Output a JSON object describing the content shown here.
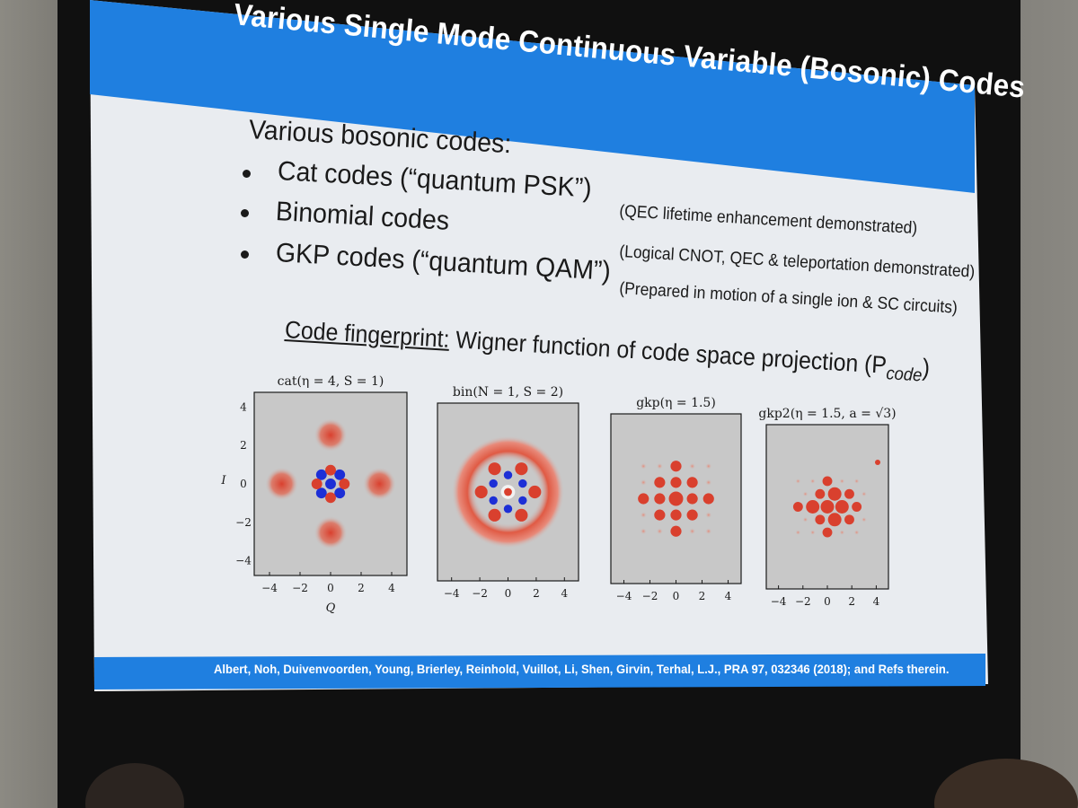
{
  "slide": {
    "title": "Various Single Mode Continuous Variable (Bosonic) Codes",
    "intro": "Various bosonic codes:",
    "bullets": [
      {
        "label": "Cat codes (“quantum PSK”)",
        "note": "(QEC lifetime enhancement demonstrated)"
      },
      {
        "label": "Binomial codes",
        "note": "(Logical CNOT, QEC & teleportation demonstrated)"
      },
      {
        "label": "GKP codes (“quantum QAM”)",
        "note": "(Prepared in motion of a single ion & SC circuits)"
      }
    ],
    "fingerprint_label": "Code fingerprint:",
    "fingerprint_text": "Wigner function of code space projection (P",
    "fingerprint_sub": "code",
    "fingerprint_close": ")",
    "footer": "Albert, Noh, Duivenvoorden, Young, Brierley, Reinhold, Vuillot, Li, Shen, Girvin, Terhal, L.J., PRA 97, 032346 (2018); and Refs therein."
  },
  "plots": [
    {
      "title": "cat(η = 4, S = 1)",
      "ylabel": "I",
      "xlabel": "Q",
      "xticks": [
        "−4",
        "−2",
        "0",
        "2",
        "4"
      ],
      "yticks": [
        "4",
        "2",
        "0",
        "−2",
        "−4"
      ],
      "kind": "cat"
    },
    {
      "title": "bin(N = 1, S = 2)",
      "xticks": [
        "−4",
        "−2",
        "0",
        "2",
        "4"
      ],
      "kind": "bin"
    },
    {
      "title": "gkp(η = 1.5)",
      "xticks": [
        "−4",
        "−2",
        "0",
        "2",
        "4"
      ],
      "kind": "gkp"
    },
    {
      "title": "gkp2(η = 1.5, a = √3)",
      "xticks": [
        "−4",
        "−2",
        "0",
        "2",
        "4"
      ],
      "kind": "gkp2"
    }
  ],
  "colors": {
    "accent": "#1f7fe0",
    "positive": "#d9402e",
    "negative": "#1d2fd6",
    "plot_bg": "#c8c8c8"
  }
}
